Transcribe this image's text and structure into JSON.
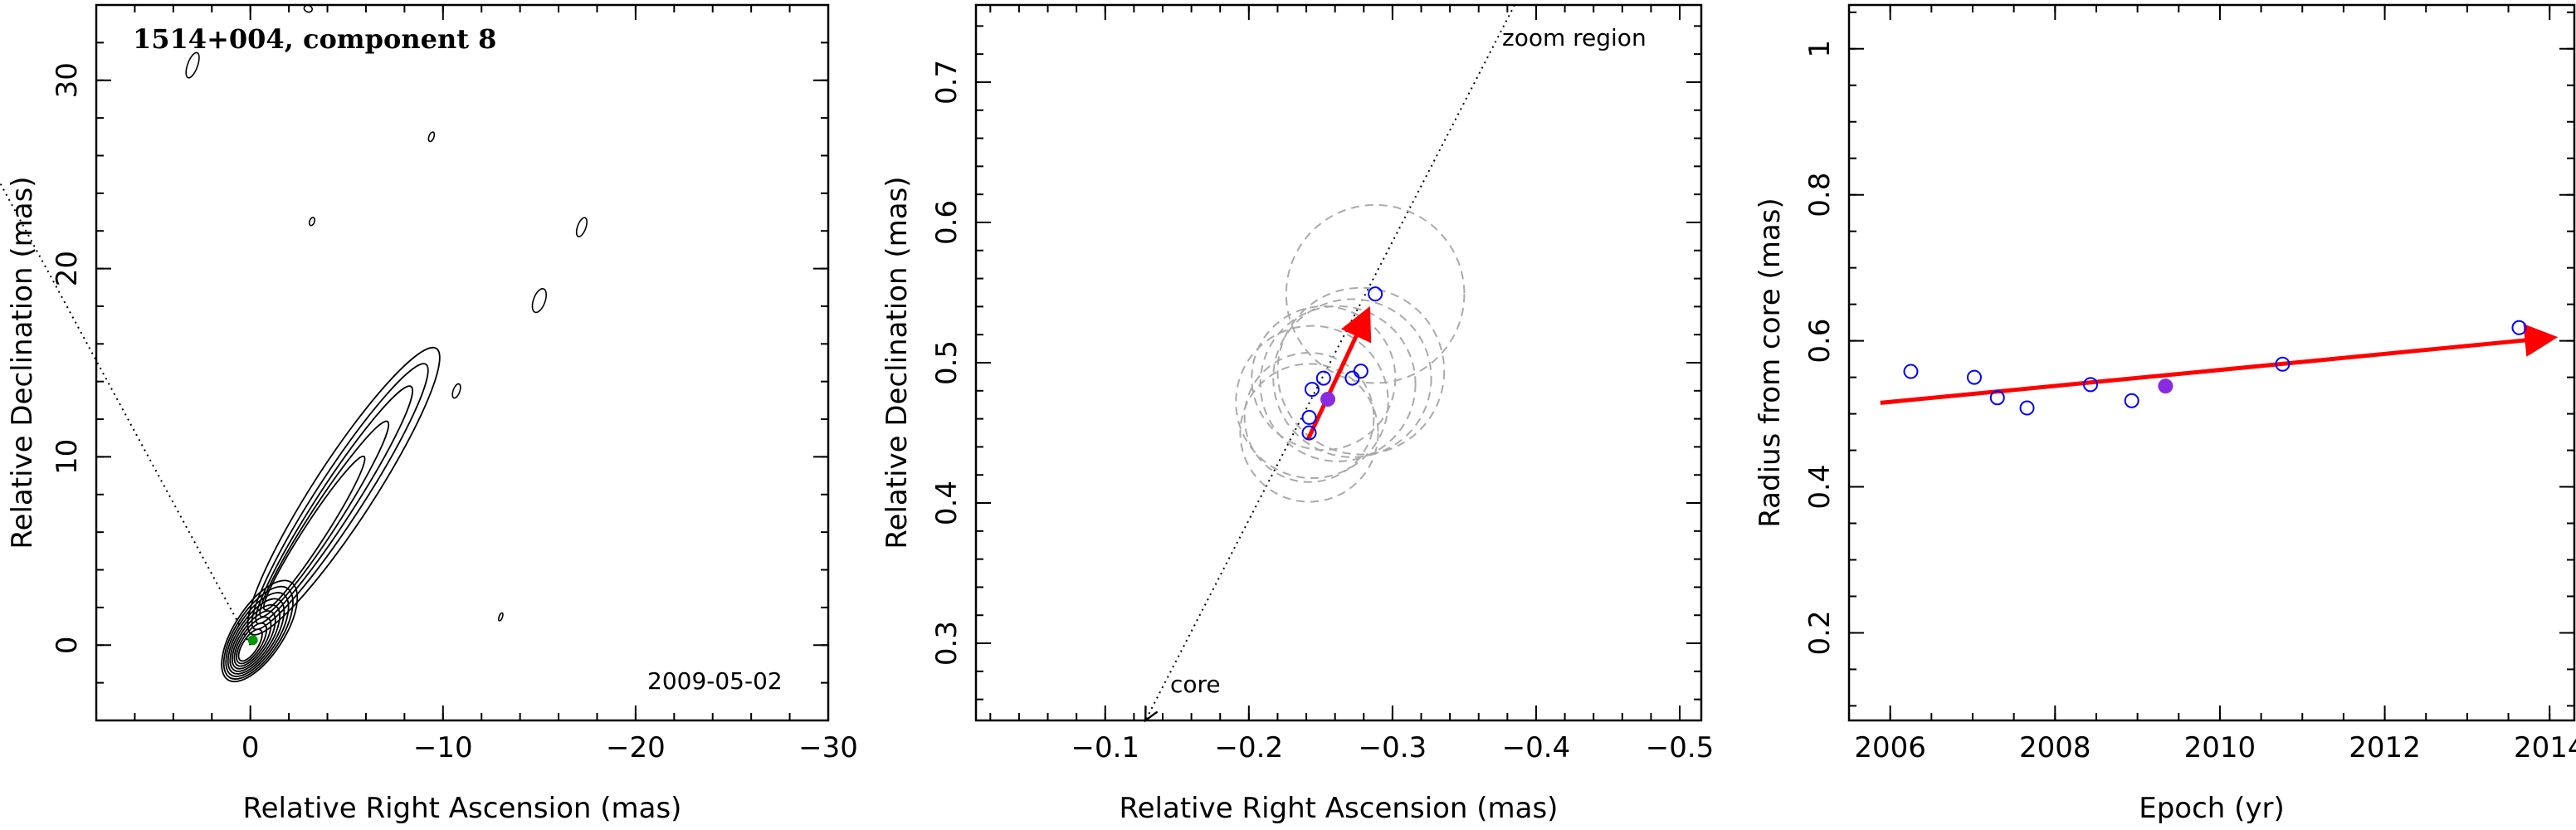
{
  "chart_data": [
    {
      "type": "contour",
      "title": "1514+004, component 8",
      "xlabel": "Relative Right Ascension (mas)",
      "ylabel": "Relative Declination (mas)",
      "xlim": [
        8,
        -30
      ],
      "ylim": [
        -4,
        34
      ],
      "xticks": [
        0,
        -10,
        -20,
        -30
      ],
      "xtick_labels": [
        "0",
        "−10",
        "−20",
        "−30"
      ],
      "yticks": [
        0,
        10,
        20,
        30
      ],
      "ytick_labels": [
        "0",
        "10",
        "20",
        "30"
      ],
      "date": "2009-05-02",
      "guide_line": [
        [
          0,
          0
        ],
        [
          18,
          34
        ]
      ]
    },
    {
      "type": "scatter",
      "xlabel": "Relative Right Ascension (mas)",
      "ylabel": "Relative Declination (mas)",
      "xlim": [
        -0.01,
        -0.515
      ],
      "ylim": [
        0.245,
        0.755
      ],
      "xticks": [
        -0.1,
        -0.2,
        -0.3,
        -0.4,
        -0.5
      ],
      "xtick_labels": [
        "−0.1",
        "−0.2",
        "−0.3",
        "−0.4",
        "−0.5"
      ],
      "yticks": [
        0.3,
        0.4,
        0.5,
        0.6,
        0.7
      ],
      "ytick_labels": [
        "0.3",
        "0.4",
        "0.5",
        "0.6",
        "0.7"
      ],
      "annotations": {
        "zoom": "zoom region",
        "core": "core"
      },
      "guide_line": [
        [
          -0.128,
          0.245
        ],
        [
          -0.385,
          0.755
        ]
      ],
      "points": [
        {
          "x": -0.288,
          "y": 0.549
        },
        {
          "x": -0.278,
          "y": 0.494
        },
        {
          "x": -0.272,
          "y": 0.489
        },
        {
          "x": -0.252,
          "y": 0.489
        },
        {
          "x": -0.244,
          "y": 0.481
        },
        {
          "x": -0.242,
          "y": 0.461
        },
        {
          "x": -0.242,
          "y": 0.45
        }
      ],
      "highlight": {
        "x": -0.255,
        "y": 0.474
      },
      "ellipses": [
        {
          "cx": -0.288,
          "cy": 0.549,
          "r": 0.062
        },
        {
          "cx": -0.278,
          "cy": 0.494,
          "r": 0.058
        },
        {
          "cx": -0.272,
          "cy": 0.489,
          "r": 0.055
        },
        {
          "cx": -0.262,
          "cy": 0.485,
          "r": 0.054
        },
        {
          "cx": -0.252,
          "cy": 0.489,
          "r": 0.05
        },
        {
          "cx": -0.244,
          "cy": 0.472,
          "r": 0.053
        },
        {
          "cx": -0.242,
          "cy": 0.461,
          "r": 0.045
        },
        {
          "cx": -0.242,
          "cy": 0.45,
          "r": 0.048
        }
      ],
      "arrow": {
        "from": [
          -0.241,
          0.445
        ],
        "to": [
          -0.282,
          0.535
        ],
        "color": "#ff0000"
      },
      "colors": {
        "points": "#0000ff",
        "highlight": "#8a2be2",
        "ellipse": "#aaaaaa"
      }
    },
    {
      "type": "scatter",
      "xlabel": "Epoch (yr)",
      "ylabel": "Radius from core (mas)",
      "xlim": [
        2005.5,
        2014.3
      ],
      "ylim": [
        0.08,
        1.06
      ],
      "xticks": [
        2006,
        2008,
        2010,
        2012,
        2014
      ],
      "xtick_labels": [
        "2006",
        "2008",
        "2010",
        "2012",
        "2014"
      ],
      "yticks": [
        0.2,
        0.4,
        0.6,
        0.8,
        1.0
      ],
      "ytick_labels": [
        "0.2",
        "0.4",
        "0.6",
        "0.8",
        "1"
      ],
      "points": [
        {
          "x": 2006.25,
          "y": 0.558
        },
        {
          "x": 2007.02,
          "y": 0.55
        },
        {
          "x": 2007.3,
          "y": 0.522
        },
        {
          "x": 2007.66,
          "y": 0.508
        },
        {
          "x": 2008.43,
          "y": 0.54
        },
        {
          "x": 2008.93,
          "y": 0.518
        },
        {
          "x": 2010.76,
          "y": 0.568
        },
        {
          "x": 2013.63,
          "y": 0.618
        }
      ],
      "highlight": {
        "x": 2009.34,
        "y": 0.538
      },
      "fit": {
        "from": [
          2005.88,
          0.515
        ],
        "to": [
          2014.0,
          0.604
        ]
      },
      "colors": {
        "points": "#0000ff",
        "highlight": "#8a2be2",
        "fit": "#ff0000"
      }
    }
  ]
}
